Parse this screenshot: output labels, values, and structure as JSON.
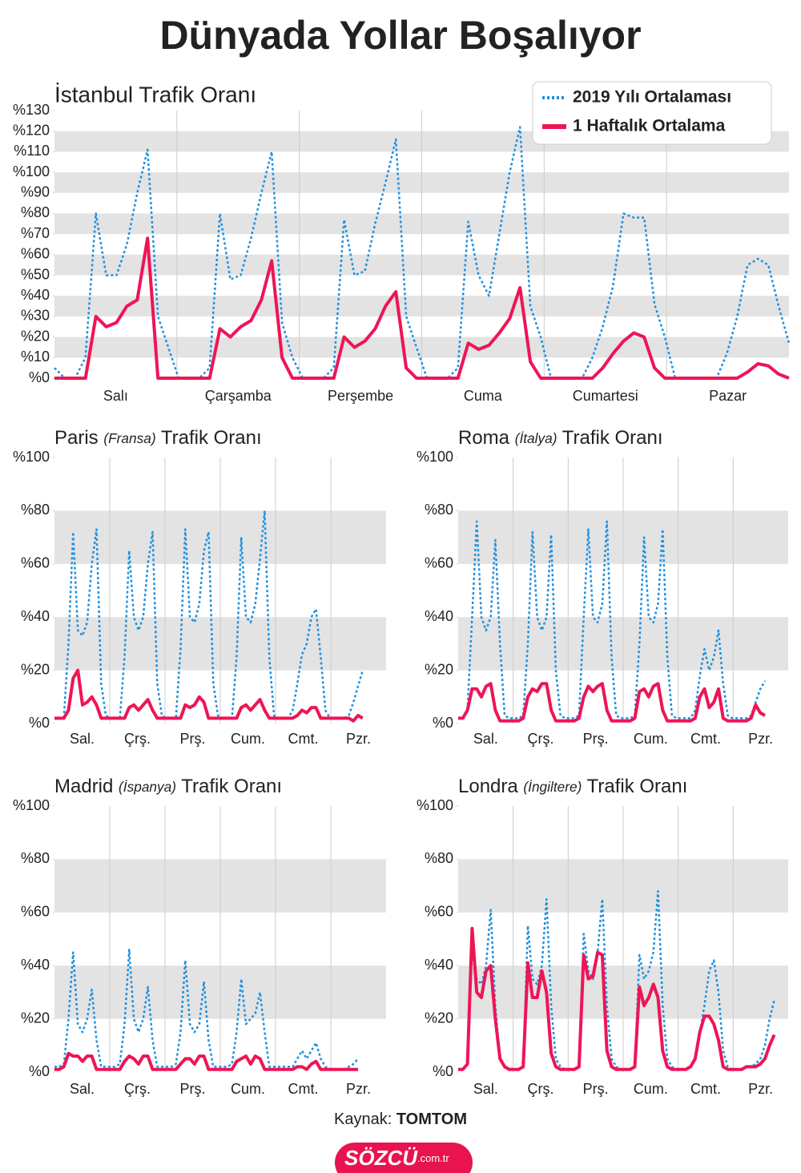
{
  "title": "Dünyada Yollar Boşalıyor",
  "source_label": "Kaynak:",
  "source": "TOMTOM",
  "logo": "SÖZCÜ",
  "logo_suffix": ".com.tr",
  "chart_data": [
    {
      "type": "line",
      "title": "İstanbul Trafik Oranı",
      "legend": "top-right",
      "day_labels": [
        "Salı",
        "Çarşamba",
        "Perşembe",
        "Cuma",
        "Cumartesi",
        "Pazar"
      ],
      "ylim": [
        0,
        130
      ],
      "yticks": [
        {
          "value": 0,
          "label": "%0"
        },
        {
          "value": 10,
          "label": "%10"
        },
        {
          "value": 20,
          "label": "%20"
        },
        {
          "value": 30,
          "label": "%30"
        },
        {
          "value": 40,
          "label": "%40"
        },
        {
          "value": 50,
          "label": "%50"
        },
        {
          "value": 60,
          "label": "%60"
        },
        {
          "value": 70,
          "label": "%70"
        },
        {
          "value": 80,
          "label": "%80"
        },
        {
          "value": 90,
          "label": "%90"
        },
        {
          "value": 100,
          "label": "%100"
        },
        {
          "value": 110,
          "label": "%110"
        },
        {
          "value": 120,
          "label": "%120"
        },
        {
          "value": 130,
          "label": "%130"
        }
      ],
      "series": [
        {
          "name": "2019 Yılı Ortalaması",
          "color": "#1e90e0",
          "style": "dotted",
          "values": [
            5,
            0,
            0,
            10,
            80,
            50,
            50,
            65,
            90,
            111,
            30,
            15,
            0,
            0,
            0,
            5,
            80,
            48,
            50,
            68,
            90,
            110,
            27,
            10,
            0,
            0,
            0,
            5,
            77,
            50,
            52,
            75,
            95,
            116,
            30,
            15,
            0,
            0,
            0,
            5,
            76,
            50,
            40,
            70,
            100,
            122,
            35,
            20,
            0,
            0,
            0,
            0,
            10,
            25,
            45,
            80,
            78,
            78,
            36,
            20,
            0,
            0,
            0,
            0,
            0,
            12,
            30,
            55,
            58,
            55,
            35,
            17
          ]
        },
        {
          "name": "1 Haftalık Ortalama",
          "color": "#ee1556",
          "style": "solid",
          "values": [
            0,
            0,
            0,
            0,
            30,
            25,
            27,
            35,
            38,
            68,
            0,
            0,
            0,
            0,
            0,
            0,
            24,
            20,
            25,
            28,
            38,
            57,
            10,
            0,
            0,
            0,
            0,
            0,
            20,
            15,
            18,
            24,
            35,
            42,
            5,
            0,
            0,
            0,
            0,
            0,
            17,
            14,
            16,
            22,
            29,
            44,
            8,
            0,
            0,
            0,
            0,
            0,
            0,
            5,
            12,
            18,
            22,
            20,
            5,
            0,
            0,
            0,
            0,
            0,
            0,
            0,
            0,
            3,
            7,
            6,
            2,
            0
          ]
        }
      ]
    },
    {
      "type": "line",
      "title": [
        "Paris",
        "(Fransa)",
        "Trafik Oranı"
      ],
      "day_labels": [
        "Sal.",
        "Çrş.",
        "Prş.",
        "Cum.",
        "Cmt.",
        "Pzr."
      ],
      "ylim": [
        0,
        100
      ],
      "yticks": [
        {
          "value": 0,
          "label": "%0"
        },
        {
          "value": 20,
          "label": "%20"
        },
        {
          "value": 40,
          "label": "%40"
        },
        {
          "value": 60,
          "label": "%60"
        },
        {
          "value": 80,
          "label": "%80"
        },
        {
          "value": 100,
          "label": "%100"
        }
      ],
      "series": [
        {
          "color": "#1e90e0",
          "style": "dotted",
          "values": [
            2,
            2,
            2,
            30,
            72,
            35,
            33,
            38,
            60,
            73,
            15,
            3,
            2,
            2,
            2,
            25,
            65,
            40,
            35,
            40,
            60,
            72,
            15,
            3,
            2,
            2,
            2,
            28,
            73,
            40,
            38,
            45,
            65,
            72,
            15,
            3,
            2,
            2,
            2,
            25,
            70,
            40,
            38,
            45,
            62,
            80,
            25,
            3,
            2,
            2,
            2,
            5,
            15,
            26,
            30,
            40,
            43,
            25,
            5,
            2,
            2,
            2,
            2,
            3,
            8,
            14,
            20,
            null,
            null,
            null,
            null,
            null
          ]
        },
        {
          "color": "#ee1556",
          "style": "solid",
          "values": [
            2,
            2,
            2,
            5,
            17,
            20,
            7,
            8,
            10,
            7,
            2,
            2,
            2,
            2,
            2,
            2,
            6,
            7,
            5,
            7,
            9,
            5,
            2,
            2,
            2,
            2,
            2,
            2,
            7,
            6,
            7,
            10,
            8,
            2,
            2,
            2,
            2,
            2,
            2,
            2,
            6,
            7,
            5,
            7,
            9,
            5,
            2,
            2,
            2,
            2,
            2,
            2,
            3,
            5,
            4,
            6,
            6,
            2,
            2,
            2,
            2,
            2,
            2,
            2,
            1,
            3,
            2,
            null,
            null,
            null,
            null,
            null
          ]
        }
      ]
    },
    {
      "type": "line",
      "title": [
        "Roma",
        "(İtalya)",
        "Trafik Oranı"
      ],
      "day_labels": [
        "Sal.",
        "Çrş.",
        "Prş.",
        "Cum.",
        "Cmt.",
        "Pzr."
      ],
      "ylim": [
        0,
        100
      ],
      "yticks": [
        {
          "value": 0,
          "label": "%0"
        },
        {
          "value": 20,
          "label": "%20"
        },
        {
          "value": 40,
          "label": "%40"
        },
        {
          "value": 60,
          "label": "%60"
        },
        {
          "value": 80,
          "label": "%80"
        },
        {
          "value": 100,
          "label": "%100"
        }
      ],
      "series": [
        {
          "color": "#1e90e0",
          "style": "dotted",
          "values": [
            2,
            2,
            5,
            40,
            76,
            40,
            35,
            40,
            69,
            30,
            3,
            2,
            2,
            2,
            3,
            30,
            72,
            40,
            35,
            40,
            71,
            20,
            3,
            2,
            2,
            2,
            3,
            40,
            73,
            40,
            38,
            45,
            76,
            25,
            3,
            2,
            2,
            2,
            3,
            30,
            70,
            40,
            38,
            45,
            73,
            25,
            3,
            2,
            2,
            2,
            2,
            5,
            18,
            28,
            20,
            25,
            35,
            15,
            3,
            2,
            2,
            2,
            2,
            3,
            8,
            13,
            16,
            null,
            null,
            null,
            null,
            null
          ]
        },
        {
          "color": "#ee1556",
          "style": "solid",
          "values": [
            2,
            2,
            5,
            13,
            13,
            10,
            14,
            15,
            5,
            1,
            1,
            1,
            1,
            1,
            2,
            10,
            13,
            12,
            15,
            15,
            5,
            1,
            1,
            1,
            1,
            1,
            2,
            10,
            14,
            12,
            14,
            15,
            5,
            1,
            1,
            1,
            1,
            1,
            2,
            12,
            13,
            10,
            14,
            15,
            5,
            1,
            1,
            1,
            1,
            1,
            1,
            2,
            10,
            13,
            6,
            8,
            13,
            2,
            1,
            1,
            1,
            1,
            1,
            2,
            7,
            4,
            3,
            null,
            null,
            null,
            null,
            null
          ]
        }
      ]
    },
    {
      "type": "line",
      "title": [
        "Madrid",
        "(İspanya)",
        "Trafik Oranı"
      ],
      "day_labels": [
        "Sal.",
        "Çrş.",
        "Prş.",
        "Cum.",
        "Cmt.",
        "Pzr."
      ],
      "ylim": [
        0,
        100
      ],
      "yticks": [
        {
          "value": 0,
          "label": "%0"
        },
        {
          "value": 20,
          "label": "%20"
        },
        {
          "value": 40,
          "label": "%40"
        },
        {
          "value": 60,
          "label": "%60"
        },
        {
          "value": 80,
          "label": "%80"
        },
        {
          "value": 100,
          "label": "%100"
        }
      ],
      "series": [
        {
          "color": "#1e90e0",
          "style": "dotted",
          "values": [
            2,
            2,
            3,
            20,
            45,
            18,
            15,
            20,
            31,
            12,
            2,
            2,
            2,
            2,
            3,
            18,
            46,
            20,
            15,
            20,
            32,
            12,
            2,
            2,
            2,
            2,
            3,
            15,
            42,
            18,
            15,
            18,
            34,
            12,
            2,
            2,
            2,
            2,
            3,
            15,
            35,
            18,
            20,
            22,
            30,
            15,
            2,
            2,
            2,
            2,
            2,
            2,
            5,
            8,
            5,
            8,
            11,
            5,
            2,
            1,
            1,
            1,
            1,
            2,
            3,
            5,
            null,
            null,
            null,
            null,
            null,
            null
          ]
        },
        {
          "color": "#ee1556",
          "style": "solid",
          "values": [
            1,
            1,
            2,
            7,
            6,
            6,
            4,
            6,
            6,
            1,
            1,
            1,
            1,
            1,
            1,
            4,
            6,
            5,
            3,
            6,
            6,
            1,
            1,
            1,
            1,
            1,
            1,
            3,
            5,
            5,
            3,
            6,
            6,
            1,
            1,
            1,
            1,
            1,
            1,
            4,
            5,
            6,
            3,
            6,
            5,
            1,
            1,
            1,
            1,
            1,
            1,
            1,
            2,
            2,
            1,
            3,
            4,
            1,
            1,
            1,
            1,
            1,
            1,
            1,
            1,
            1,
            null,
            null,
            null,
            null,
            null,
            null
          ]
        }
      ]
    },
    {
      "type": "line",
      "title": [
        "Londra",
        "(İngiltere)",
        "Trafik Oranı"
      ],
      "day_labels": [
        "Sal.",
        "Çrş.",
        "Prş.",
        "Cum.",
        "Cmt.",
        "Pzr."
      ],
      "ylim": [
        0,
        100
      ],
      "yticks": [
        {
          "value": 0,
          "label": "%0"
        },
        {
          "value": 20,
          "label": "%20"
        },
        {
          "value": 40,
          "label": "%40"
        },
        {
          "value": 60,
          "label": "%60"
        },
        {
          "value": 80,
          "label": "%80"
        },
        {
          "value": 100,
          "label": "%100"
        }
      ],
      "series": [
        {
          "color": "#1e90e0",
          "style": "dotted",
          "values": [
            1,
            1,
            3,
            45,
            35,
            33,
            40,
            61,
            25,
            5,
            2,
            1,
            1,
            1,
            2,
            55,
            35,
            33,
            40,
            65,
            25,
            5,
            2,
            1,
            1,
            1,
            2,
            52,
            38,
            35,
            45,
            65,
            25,
            5,
            2,
            1,
            1,
            1,
            2,
            44,
            35,
            38,
            45,
            68,
            25,
            5,
            2,
            1,
            1,
            1,
            2,
            5,
            15,
            25,
            38,
            42,
            30,
            8,
            2,
            1,
            1,
            1,
            2,
            2,
            3,
            5,
            10,
            20,
            27,
            null,
            null,
            null
          ]
        },
        {
          "color": "#ee1556",
          "style": "solid",
          "values": [
            1,
            1,
            3,
            54,
            30,
            28,
            38,
            40,
            20,
            5,
            2,
            1,
            1,
            1,
            2,
            41,
            28,
            28,
            38,
            30,
            7,
            2,
            1,
            1,
            1,
            1,
            2,
            44,
            35,
            36,
            45,
            44,
            8,
            2,
            1,
            1,
            1,
            1,
            2,
            32,
            25,
            28,
            33,
            28,
            8,
            2,
            1,
            1,
            1,
            1,
            2,
            5,
            15,
            21,
            21,
            18,
            12,
            2,
            1,
            1,
            1,
            1,
            2,
            2,
            2,
            3,
            5,
            10,
            14,
            null,
            null,
            null
          ]
        }
      ]
    }
  ]
}
